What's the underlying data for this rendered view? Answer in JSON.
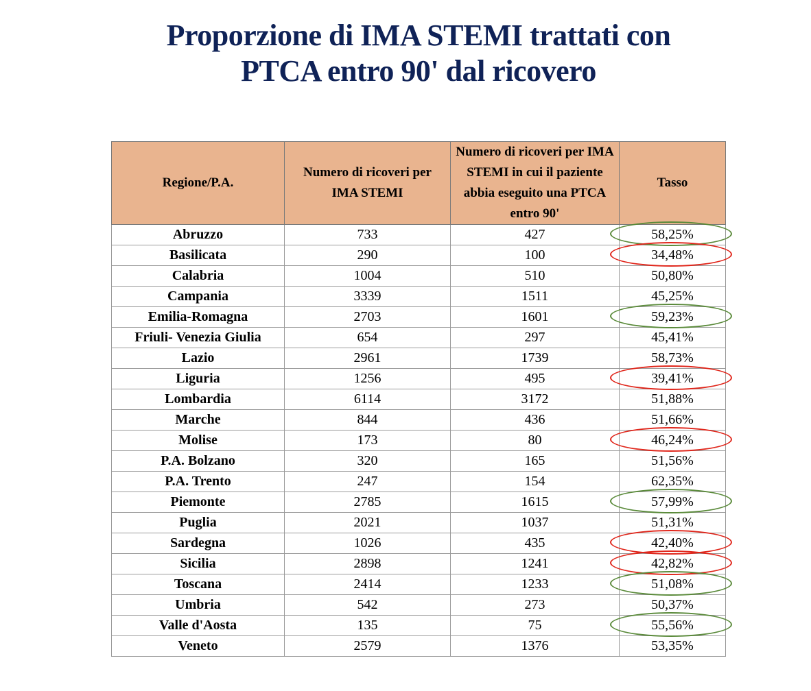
{
  "title": {
    "line1": "Proporzione di IMA STEMI trattati con",
    "line2": "PTCA entro 90' dal ricovero"
  },
  "colors": {
    "header_bg": "#e9b48f",
    "title": "#0f2257",
    "good": "#5a8a3a",
    "bad": "#e0261b"
  },
  "table": {
    "headers": [
      "Regione/P.A.",
      "Numero di ricoveri per IMA STEMI",
      "Numero di ricoveri per IMA STEMI in cui il paziente abbia eseguito una PTCA entro 90'",
      "Tasso"
    ],
    "rows": [
      {
        "region": "Abruzzo",
        "admissions": "733",
        "ptca": "427",
        "rate": "58,25%",
        "mark": "green"
      },
      {
        "region": "Basilicata",
        "admissions": "290",
        "ptca": "100",
        "rate": "34,48%",
        "mark": "red"
      },
      {
        "region": "Calabria",
        "admissions": "1004",
        "ptca": "510",
        "rate": "50,80%",
        "mark": ""
      },
      {
        "region": "Campania",
        "admissions": "3339",
        "ptca": "1511",
        "rate": "45,25%",
        "mark": ""
      },
      {
        "region": "Emilia-Romagna",
        "admissions": "2703",
        "ptca": "1601",
        "rate": "59,23%",
        "mark": "green"
      },
      {
        "region": "Friuli- Venezia Giulia",
        "admissions": "654",
        "ptca": "297",
        "rate": "45,41%",
        "mark": ""
      },
      {
        "region": "Lazio",
        "admissions": "2961",
        "ptca": "1739",
        "rate": "58,73%",
        "mark": ""
      },
      {
        "region": "Liguria",
        "admissions": "1256",
        "ptca": "495",
        "rate": "39,41%",
        "mark": "red"
      },
      {
        "region": "Lombardia",
        "admissions": "6114",
        "ptca": "3172",
        "rate": "51,88%",
        "mark": ""
      },
      {
        "region": "Marche",
        "admissions": "844",
        "ptca": "436",
        "rate": "51,66%",
        "mark": ""
      },
      {
        "region": "Molise",
        "admissions": "173",
        "ptca": "80",
        "rate": "46,24%",
        "mark": "red"
      },
      {
        "region": "P.A. Bolzano",
        "admissions": "320",
        "ptca": "165",
        "rate": "51,56%",
        "mark": ""
      },
      {
        "region": "P.A. Trento",
        "admissions": "247",
        "ptca": "154",
        "rate": "62,35%",
        "mark": ""
      },
      {
        "region": "Piemonte",
        "admissions": "2785",
        "ptca": "1615",
        "rate": "57,99%",
        "mark": "green"
      },
      {
        "region": "Puglia",
        "admissions": "2021",
        "ptca": "1037",
        "rate": "51,31%",
        "mark": ""
      },
      {
        "region": "Sardegna",
        "admissions": "1026",
        "ptca": "435",
        "rate": "42,40%",
        "mark": "red"
      },
      {
        "region": "Sicilia",
        "admissions": "2898",
        "ptca": "1241",
        "rate": "42,82%",
        "mark": "red"
      },
      {
        "region": "Toscana",
        "admissions": "2414",
        "ptca": "1233",
        "rate": "51,08%",
        "mark": "green"
      },
      {
        "region": "Umbria",
        "admissions": "542",
        "ptca": "273",
        "rate": "50,37%",
        "mark": ""
      },
      {
        "region": "Valle d'Aosta",
        "admissions": "135",
        "ptca": "75",
        "rate": "55,56%",
        "mark": "green"
      },
      {
        "region": "Veneto",
        "admissions": "2579",
        "ptca": "1376",
        "rate": "53,35%",
        "mark": ""
      }
    ]
  }
}
